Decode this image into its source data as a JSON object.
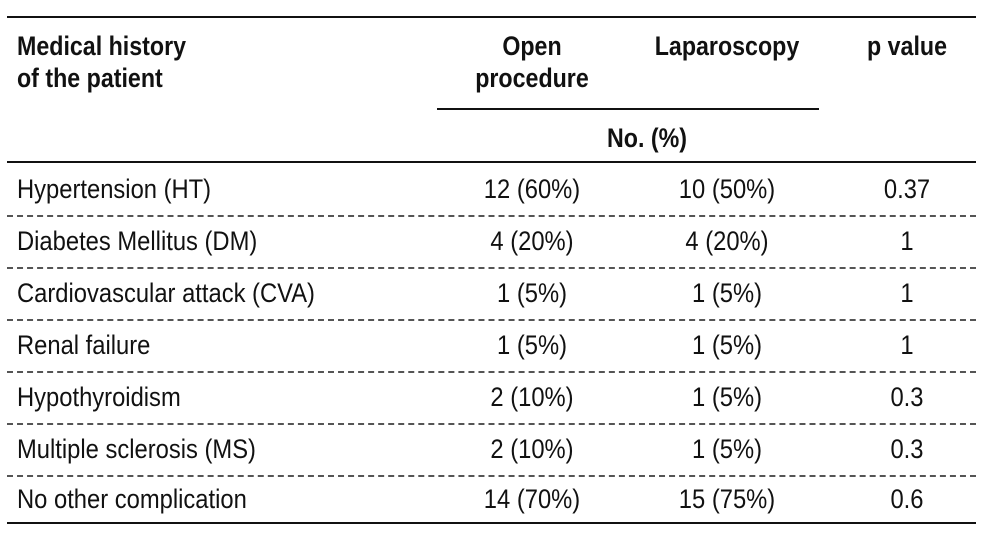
{
  "table": {
    "headers": {
      "col1_line1": "Medical history",
      "col1_line2": "of the patient",
      "open_line1": "Open",
      "open_line2": "procedure",
      "laparoscopy": "Laparoscopy",
      "p_value": "p value",
      "subheader": "No. (%)"
    },
    "rows": [
      {
        "name": "Hypertension (HT)",
        "open": "12 (60%)",
        "lap": "10 (50%)",
        "p": "0.37"
      },
      {
        "name": "Diabetes Mellitus (DM)",
        "open": "4 (20%)",
        "lap": "4 (20%)",
        "p": "1"
      },
      {
        "name": "Cardiovascular attack (CVA)",
        "open": "1 (5%)",
        "lap": "1 (5%)",
        "p": "1"
      },
      {
        "name": "Renal failure",
        "open": "1 (5%)",
        "lap": "1 (5%)",
        "p": "1"
      },
      {
        "name": "Hypothyroidism",
        "open": "2 (10%)",
        "lap": "1 (5%)",
        "p": "0.3"
      },
      {
        "name": "Multiple sclerosis (MS)",
        "open": "2 (10%)",
        "lap": "1 (5%)",
        "p": "0.3"
      },
      {
        "name": "No other complication",
        "open": "14 (70%)",
        "lap": "15 (75%)",
        "p": "0.6"
      }
    ]
  }
}
